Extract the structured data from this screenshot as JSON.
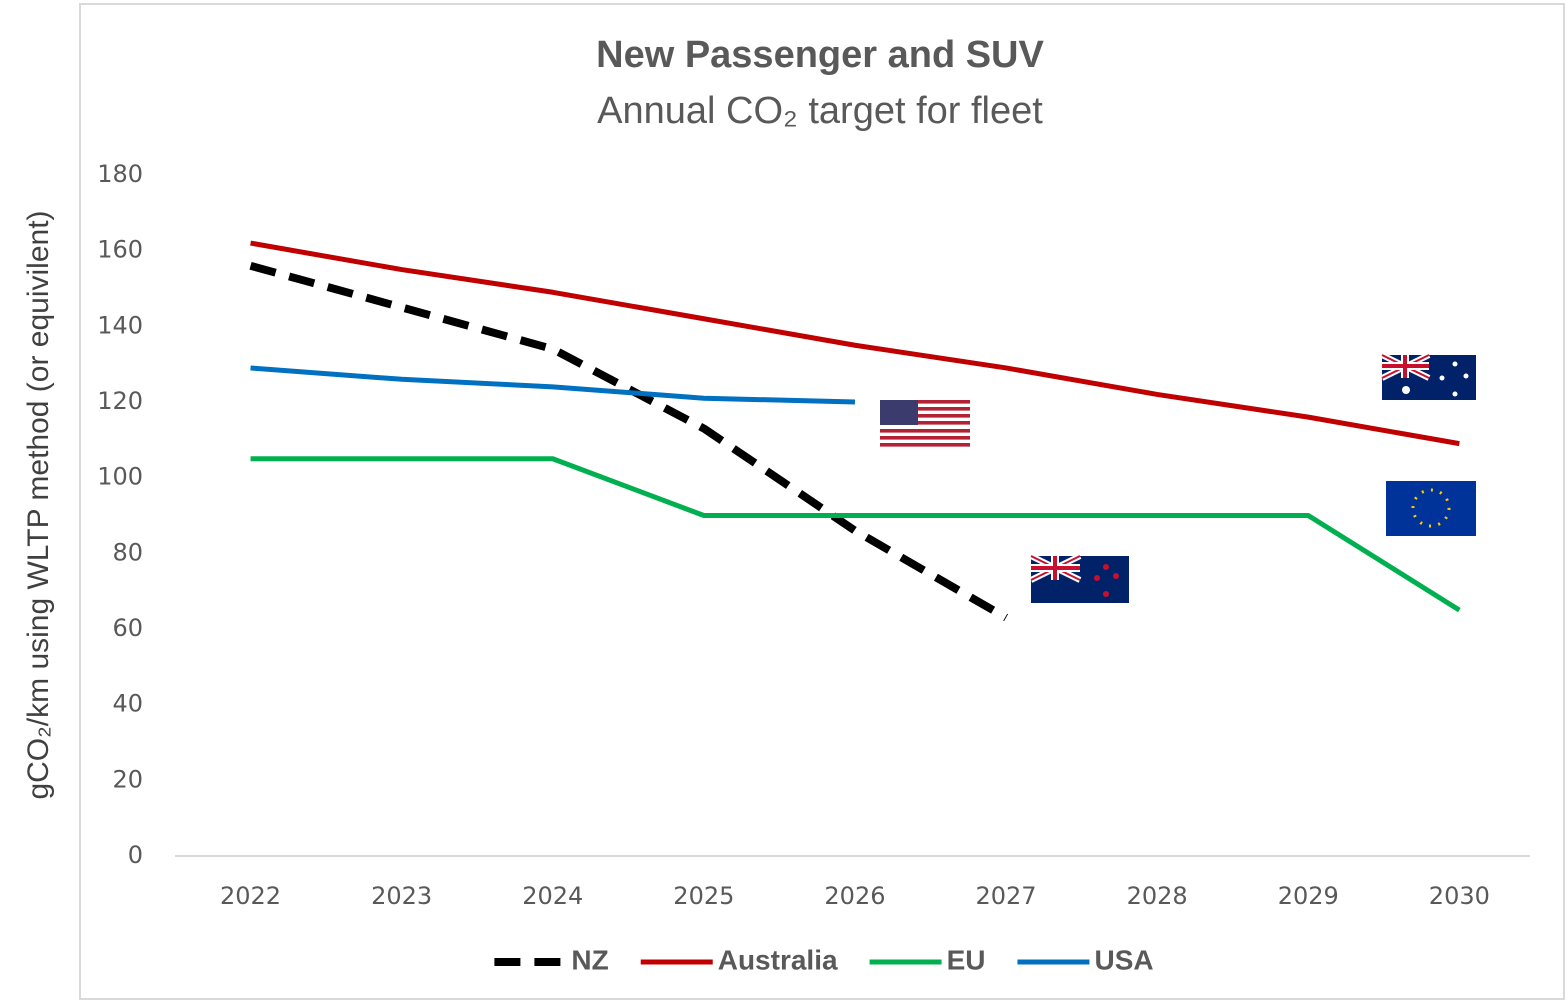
{
  "chart_data": {
    "type": "line",
    "title": "New Passenger and SUV",
    "subtitle": "Annual CO₂ target for fleet",
    "y_label": "gCO₂/km using WLTP method (or equivilent)",
    "categories": [
      "2022",
      "2023",
      "2024",
      "2025",
      "2026",
      "2027",
      "2028",
      "2029",
      "2030"
    ],
    "series": [
      {
        "name": "NZ",
        "color": "#000000",
        "dashed": true,
        "values": [
          156,
          145,
          134,
          113,
          86,
          63,
          null,
          null,
          null
        ]
      },
      {
        "name": "Australia",
        "color": "#c00000",
        "values": [
          162,
          155,
          149,
          142,
          135,
          129,
          122,
          116,
          109
        ]
      },
      {
        "name": "EU",
        "color": "#00b050",
        "values": [
          105,
          105,
          105,
          90,
          90,
          90,
          90,
          90,
          65
        ]
      },
      {
        "name": "USA",
        "color": "#0070c0",
        "values": [
          129,
          126,
          124,
          121,
          120,
          null,
          null,
          null,
          null
        ]
      }
    ],
    "ylim": [
      0,
      180
    ],
    "yticks": [
      0,
      20,
      40,
      60,
      80,
      100,
      120,
      140,
      160,
      180
    ],
    "grid": false,
    "legend": "bottom"
  }
}
